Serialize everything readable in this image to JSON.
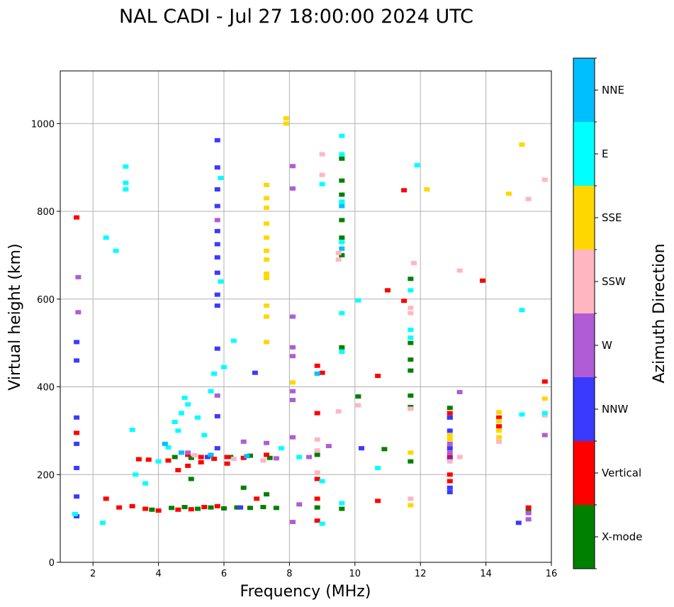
{
  "chart_data": {
    "type": "scatter",
    "title": "NAL CADI - Jul 27 18:00:00 2024 UTC",
    "xlabel": "Frequency (MHz)",
    "ylabel": "Virtual height (km)",
    "xlim": [
      1,
      16
    ],
    "ylim": [
      0,
      1120
    ],
    "xticks": [
      2,
      4,
      6,
      8,
      10,
      12,
      14,
      16
    ],
    "yticks": [
      0,
      200,
      400,
      600,
      800,
      1000
    ],
    "grid": true,
    "colorbar": {
      "label": "Azimuth Direction",
      "categories": [
        "X-mode",
        "Vertical",
        "NNW",
        "W",
        "SSW",
        "SSE",
        "E",
        "NNE"
      ],
      "colors": [
        "#008000",
        "#ff0000",
        "#3a3aff",
        "#b05cd6",
        "#ffb6c1",
        "#ffd700",
        "#00ffff",
        "#00bfff"
      ]
    },
    "series": [
      {
        "name": "X-mode",
        "points": [
          [
            4.4,
            124
          ],
          [
            4.8,
            126
          ],
          [
            5.2,
            122
          ],
          [
            5.6,
            125
          ],
          [
            6.0,
            123
          ],
          [
            6.4,
            125
          ],
          [
            6.8,
            124
          ],
          [
            7.2,
            126
          ],
          [
            7.6,
            124
          ],
          [
            4.5,
            240
          ],
          [
            5.0,
            238
          ],
          [
            5.6,
            244
          ],
          [
            6.2,
            240
          ],
          [
            6.8,
            243
          ],
          [
            7.4,
            238
          ],
          [
            8.85,
            245
          ],
          [
            8.85,
            125
          ],
          [
            9.6,
            920
          ],
          [
            9.6,
            870
          ],
          [
            9.6,
            838
          ],
          [
            9.6,
            780
          ],
          [
            9.6,
            740
          ],
          [
            9.6,
            700
          ],
          [
            9.6,
            490
          ],
          [
            9.6,
            122
          ],
          [
            10.1,
            378
          ],
          [
            10.9,
            258
          ],
          [
            11.7,
            646
          ],
          [
            11.7,
            500
          ],
          [
            11.7,
            462
          ],
          [
            11.7,
            437
          ],
          [
            11.7,
            380
          ],
          [
            11.7,
            354
          ],
          [
            11.7,
            230
          ],
          [
            12.9,
            352
          ],
          [
            12.9,
            330
          ],
          [
            15.3,
            118
          ],
          [
            6.6,
            170
          ],
          [
            7.3,
            155
          ],
          [
            5.0,
            190
          ],
          [
            3.8,
            120
          ]
        ]
      },
      {
        "name": "Vertical",
        "points": [
          [
            2.8,
            125
          ],
          [
            3.2,
            128
          ],
          [
            3.6,
            122
          ],
          [
            4.0,
            118
          ],
          [
            4.6,
            120
          ],
          [
            5.0,
            121
          ],
          [
            5.4,
            126
          ],
          [
            5.8,
            128
          ],
          [
            3.4,
            235
          ],
          [
            3.7,
            234
          ],
          [
            4.3,
            232
          ],
          [
            4.9,
            245
          ],
          [
            5.3,
            240
          ],
          [
            5.7,
            236
          ],
          [
            6.1,
            240
          ],
          [
            6.6,
            238
          ],
          [
            7.3,
            245
          ],
          [
            8.85,
            448
          ],
          [
            8.85,
            340
          ],
          [
            8.85,
            190
          ],
          [
            8.85,
            145
          ],
          [
            8.85,
            95
          ],
          [
            9.0,
            432
          ],
          [
            1.5,
            786
          ],
          [
            1.5,
            295
          ],
          [
            4.6,
            210
          ],
          [
            4.9,
            220
          ],
          [
            5.3,
            228
          ],
          [
            10.7,
            425
          ],
          [
            10.7,
            140
          ],
          [
            11.0,
            620
          ],
          [
            11.5,
            848
          ],
          [
            11.5,
            596
          ],
          [
            12.9,
            340
          ],
          [
            12.9,
            240
          ],
          [
            12.9,
            200
          ],
          [
            12.9,
            185
          ],
          [
            13.9,
            642
          ],
          [
            14.4,
            330
          ],
          [
            14.4,
            310
          ],
          [
            15.3,
            125
          ],
          [
            15.8,
            412
          ],
          [
            6.1,
            225
          ],
          [
            7.0,
            145
          ],
          [
            2.4,
            145
          ]
        ]
      },
      {
        "name": "NNW",
        "points": [
          [
            1.5,
            502
          ],
          [
            1.5,
            460
          ],
          [
            1.5,
            270
          ],
          [
            1.5,
            215
          ],
          [
            1.5,
            150
          ],
          [
            1.5,
            105
          ],
          [
            1.5,
            330
          ],
          [
            5.8,
            962
          ],
          [
            5.8,
            900
          ],
          [
            5.8,
            850
          ],
          [
            5.8,
            812
          ],
          [
            5.8,
            755
          ],
          [
            5.8,
            725
          ],
          [
            5.8,
            695
          ],
          [
            5.8,
            660
          ],
          [
            5.8,
            610
          ],
          [
            5.8,
            585
          ],
          [
            5.8,
            487
          ],
          [
            5.8,
            333
          ],
          [
            5.8,
            260
          ],
          [
            6.95,
            432
          ],
          [
            12.9,
            330
          ],
          [
            12.9,
            300
          ],
          [
            12.9,
            260
          ],
          [
            12.9,
            235
          ],
          [
            12.9,
            170
          ],
          [
            12.9,
            160
          ],
          [
            15.0,
            90
          ],
          [
            10.2,
            260
          ],
          [
            5.5,
            240
          ],
          [
            6.5,
            125
          ]
        ]
      },
      {
        "name": "W",
        "points": [
          [
            1.55,
            650
          ],
          [
            1.55,
            570
          ],
          [
            8.1,
            903
          ],
          [
            8.1,
            852
          ],
          [
            8.1,
            560
          ],
          [
            8.1,
            490
          ],
          [
            8.1,
            470
          ],
          [
            8.1,
            390
          ],
          [
            8.1,
            370
          ],
          [
            8.1,
            285
          ],
          [
            8.1,
            92
          ],
          [
            8.3,
            132
          ],
          [
            8.6,
            240
          ],
          [
            9.2,
            265
          ],
          [
            13.2,
            388
          ],
          [
            15.3,
            112
          ],
          [
            15.3,
            98
          ],
          [
            15.8,
            290
          ],
          [
            5.8,
            780
          ],
          [
            5.8,
            380
          ],
          [
            6.6,
            275
          ],
          [
            7.3,
            272
          ],
          [
            7.6,
            237
          ],
          [
            4.9,
            250
          ],
          [
            12.9,
            270
          ],
          [
            12.9,
            250
          ]
        ]
      },
      {
        "name": "SSW",
        "points": [
          [
            9.0,
            930
          ],
          [
            9.0,
            883
          ],
          [
            8.85,
            280
          ],
          [
            8.85,
            255
          ],
          [
            8.85,
            205
          ],
          [
            9.5,
            344
          ],
          [
            9.5,
            705
          ],
          [
            9.5,
            690
          ],
          [
            10.1,
            358
          ],
          [
            11.7,
            580
          ],
          [
            11.7,
            568
          ],
          [
            11.7,
            350
          ],
          [
            11.7,
            145
          ],
          [
            11.8,
            682
          ],
          [
            13.2,
            665
          ],
          [
            13.2,
            240
          ],
          [
            14.4,
            275
          ],
          [
            15.3,
            828
          ],
          [
            15.8,
            872
          ],
          [
            15.8,
            335
          ],
          [
            12.9,
            230
          ],
          [
            5.1,
            244
          ],
          [
            6.3,
            236
          ],
          [
            7.2,
            232
          ]
        ]
      },
      {
        "name": "SSE",
        "points": [
          [
            7.3,
            860
          ],
          [
            7.3,
            830
          ],
          [
            7.3,
            808
          ],
          [
            7.3,
            772
          ],
          [
            7.3,
            740
          ],
          [
            7.3,
            710
          ],
          [
            7.3,
            690
          ],
          [
            7.3,
            658
          ],
          [
            7.3,
            648
          ],
          [
            7.3,
            585
          ],
          [
            7.3,
            560
          ],
          [
            7.3,
            502
          ],
          [
            7.9,
            1012
          ],
          [
            7.9,
            1000
          ],
          [
            8.1,
            410
          ],
          [
            11.7,
            250
          ],
          [
            11.7,
            130
          ],
          [
            12.2,
            850
          ],
          [
            14.4,
            342
          ],
          [
            14.4,
            322
          ],
          [
            14.4,
            300
          ],
          [
            14.4,
            285
          ],
          [
            14.7,
            840
          ],
          [
            15.1,
            952
          ],
          [
            15.8,
            373
          ],
          [
            12.9,
            290
          ],
          [
            12.9,
            280
          ]
        ]
      },
      {
        "name": "E",
        "points": [
          [
            2.3,
            90
          ],
          [
            2.4,
            740
          ],
          [
            2.7,
            710
          ],
          [
            3.0,
            902
          ],
          [
            3.0,
            865
          ],
          [
            3.0,
            850
          ],
          [
            3.2,
            302
          ],
          [
            3.3,
            200
          ],
          [
            3.6,
            180
          ],
          [
            4.0,
            230
          ],
          [
            4.3,
            262
          ],
          [
            4.5,
            320
          ],
          [
            4.6,
            300
          ],
          [
            4.7,
            340
          ],
          [
            4.8,
            375
          ],
          [
            4.9,
            360
          ],
          [
            5.2,
            330
          ],
          [
            5.4,
            290
          ],
          [
            5.6,
            390
          ],
          [
            5.7,
            430
          ],
          [
            5.9,
            876
          ],
          [
            5.9,
            640
          ],
          [
            6.0,
            445
          ],
          [
            6.3,
            505
          ],
          [
            9.0,
            862
          ],
          [
            9.0,
            185
          ],
          [
            9.0,
            88
          ],
          [
            9.6,
            972
          ],
          [
            9.6,
            930
          ],
          [
            9.6,
            822
          ],
          [
            9.6,
            730
          ],
          [
            9.6,
            568
          ],
          [
            9.6,
            480
          ],
          [
            9.6,
            135
          ],
          [
            10.1,
            597
          ],
          [
            10.7,
            215
          ],
          [
            11.7,
            620
          ],
          [
            11.7,
            530
          ],
          [
            11.7,
            512
          ],
          [
            11.9,
            905
          ],
          [
            15.1,
            575
          ],
          [
            15.1,
            337
          ],
          [
            15.8,
            340
          ],
          [
            7.75,
            260
          ],
          [
            8.3,
            240
          ],
          [
            1.45,
            110
          ]
        ]
      },
      {
        "name": "NNE",
        "points": [
          [
            4.2,
            270
          ],
          [
            4.7,
            250
          ],
          [
            5.6,
            245
          ],
          [
            6.7,
            242
          ],
          [
            8.85,
            430
          ],
          [
            9.6,
            812
          ],
          [
            9.6,
            715
          ]
        ]
      }
    ]
  }
}
